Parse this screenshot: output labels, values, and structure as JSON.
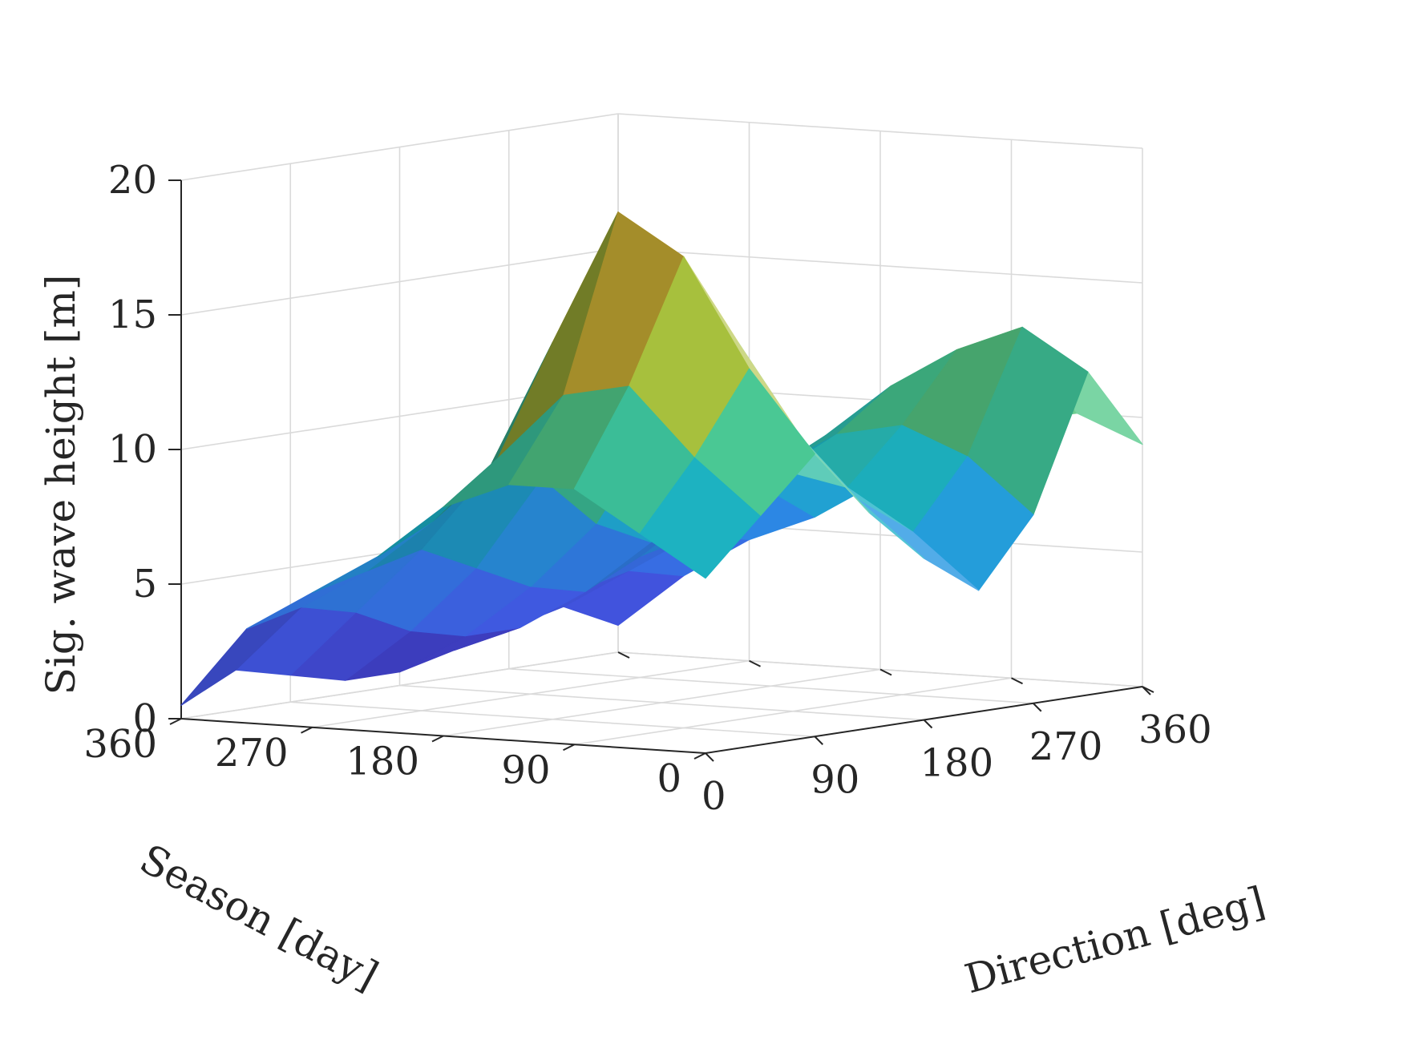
{
  "chart_data": {
    "type": "surface",
    "xlabel": "Direction [deg]",
    "ylabel": "Season [day]",
    "zlabel": "Sig. wave height [m]",
    "xlim": [
      0,
      360
    ],
    "ylim": [
      0,
      360
    ],
    "zlim": [
      0,
      20
    ],
    "xticks": [
      "0",
      "90",
      "180",
      "270",
      "360"
    ],
    "yticks": [
      "0",
      "90",
      "180",
      "270",
      "360"
    ],
    "zticks": [
      "0",
      "5",
      "10",
      "15",
      "20"
    ],
    "grid": true,
    "colormap": "parula",
    "colormap_colors": [
      "#3e26a8",
      "#4760f7",
      "#2e8cee",
      "#1ab2c7",
      "#48c88f",
      "#a6c03c",
      "#f0b935",
      "#f9fb0e"
    ],
    "x": [
      0,
      45,
      90,
      135,
      180,
      225,
      270,
      315,
      360
    ],
    "y": [
      0,
      45,
      90,
      135,
      180,
      225,
      270,
      315,
      360
    ],
    "z": [
      [
        6.5,
        8.5,
        10.5,
        8.0,
        6.0,
        4.5,
        7.0,
        12.0,
        9.0
      ],
      [
        8.0,
        10.5,
        13.5,
        10.5,
        8.0,
        6.5,
        9.0,
        13.5,
        10.0
      ],
      [
        9.5,
        13.0,
        17.5,
        14.0,
        10.5,
        8.0,
        10.0,
        12.5,
        9.5
      ],
      [
        9.5,
        12.5,
        19.0,
        16.5,
        12.0,
        8.5,
        9.5,
        11.0,
        8.0
      ],
      [
        8.5,
        10.0,
        14.0,
        15.5,
        10.5,
        7.0,
        8.0,
        9.0,
        7.0
      ],
      [
        6.5,
        7.5,
        9.0,
        8.5,
        6.5,
        5.5,
        6.5,
        7.0,
        5.5
      ],
      [
        5.0,
        5.5,
        6.0,
        5.0,
        4.0,
        3.5,
        4.5,
        5.0,
        4.5
      ],
      [
        3.5,
        4.0,
        3.5,
        2.5,
        2.0,
        2.0,
        3.0,
        3.5,
        3.0
      ],
      [
        0.5,
        1.5,
        1.0,
        0.5,
        0.5,
        1.0,
        1.5,
        2.0,
        1.0
      ]
    ]
  }
}
